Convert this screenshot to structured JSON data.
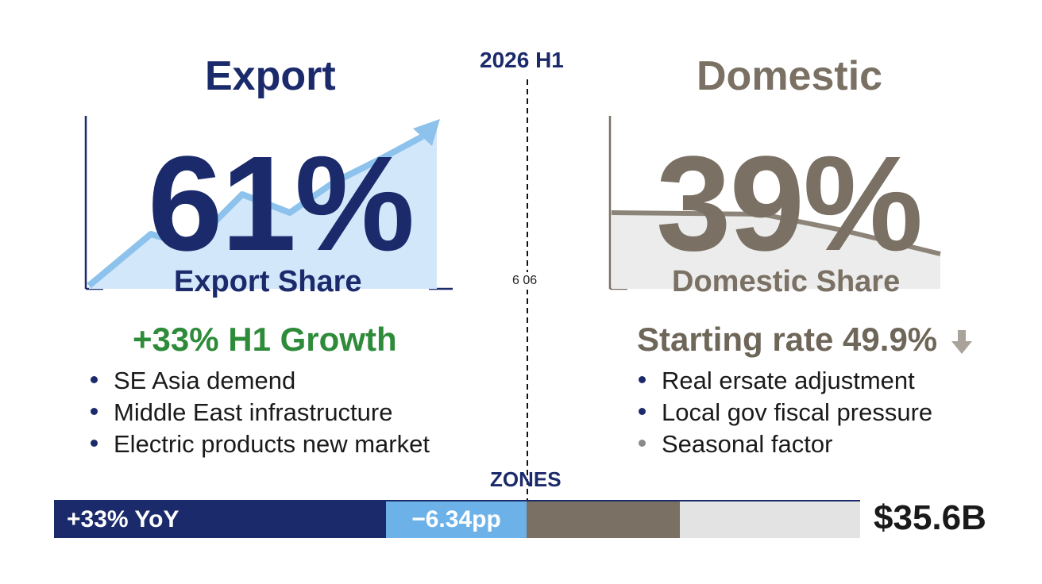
{
  "colors": {
    "export_navy": "#1b2a6b",
    "export_light": "#cfe4f9",
    "export_arrow": "#8cc2ec",
    "growth_green": "#2e8b3a",
    "domestic_taupe": "#7a7063",
    "domestic_fill": "#ececec",
    "zone_light_blue": "#6cb2e8",
    "zone_grey": "#e3e3e3"
  },
  "center": {
    "period": "2026 H1",
    "axis_label": "6 06",
    "zones_label": "ZONES"
  },
  "export": {
    "title": "Export",
    "share_value": "61%",
    "share_label": "Export Share",
    "growth": "+33% H1 Growth",
    "bullets": [
      "SE Asia demend",
      "Middle East infrastructure",
      "Electric products new market"
    ],
    "bullet_icon": "dot-icon",
    "trend": "up",
    "trend_icon": "arrow-up-icon"
  },
  "domestic": {
    "title": "Domestic",
    "share_value": "39%",
    "share_label": "Domestic Share",
    "starting_rate": "Starting rate 49.9%",
    "starting_icon": "arrow-down-icon",
    "bullets": [
      "Real ersate adjustment",
      "Local gov fiscal pressure",
      "Seasonal factor"
    ],
    "bullet_icon": "dot-icon",
    "trend": "down"
  },
  "zones_bar": {
    "segments": [
      {
        "label": "+33% YoY",
        "color": "#1b2a6b",
        "text_color": "#ffffff"
      },
      {
        "label": "−6.34pp",
        "color": "#6cb2e8",
        "text_color": "#ffffff"
      },
      {
        "label": "",
        "color": "#7a7063",
        "text_color": "#ffffff"
      },
      {
        "label": "",
        "color": "#e3e3e3",
        "text_color": "#1a1a1a"
      }
    ],
    "total": "$35.6B"
  },
  "chart_data": {
    "type": "bar",
    "categories": [
      "Export",
      "Domestic"
    ],
    "values": [
      61,
      39
    ],
    "unit": "%"
  }
}
